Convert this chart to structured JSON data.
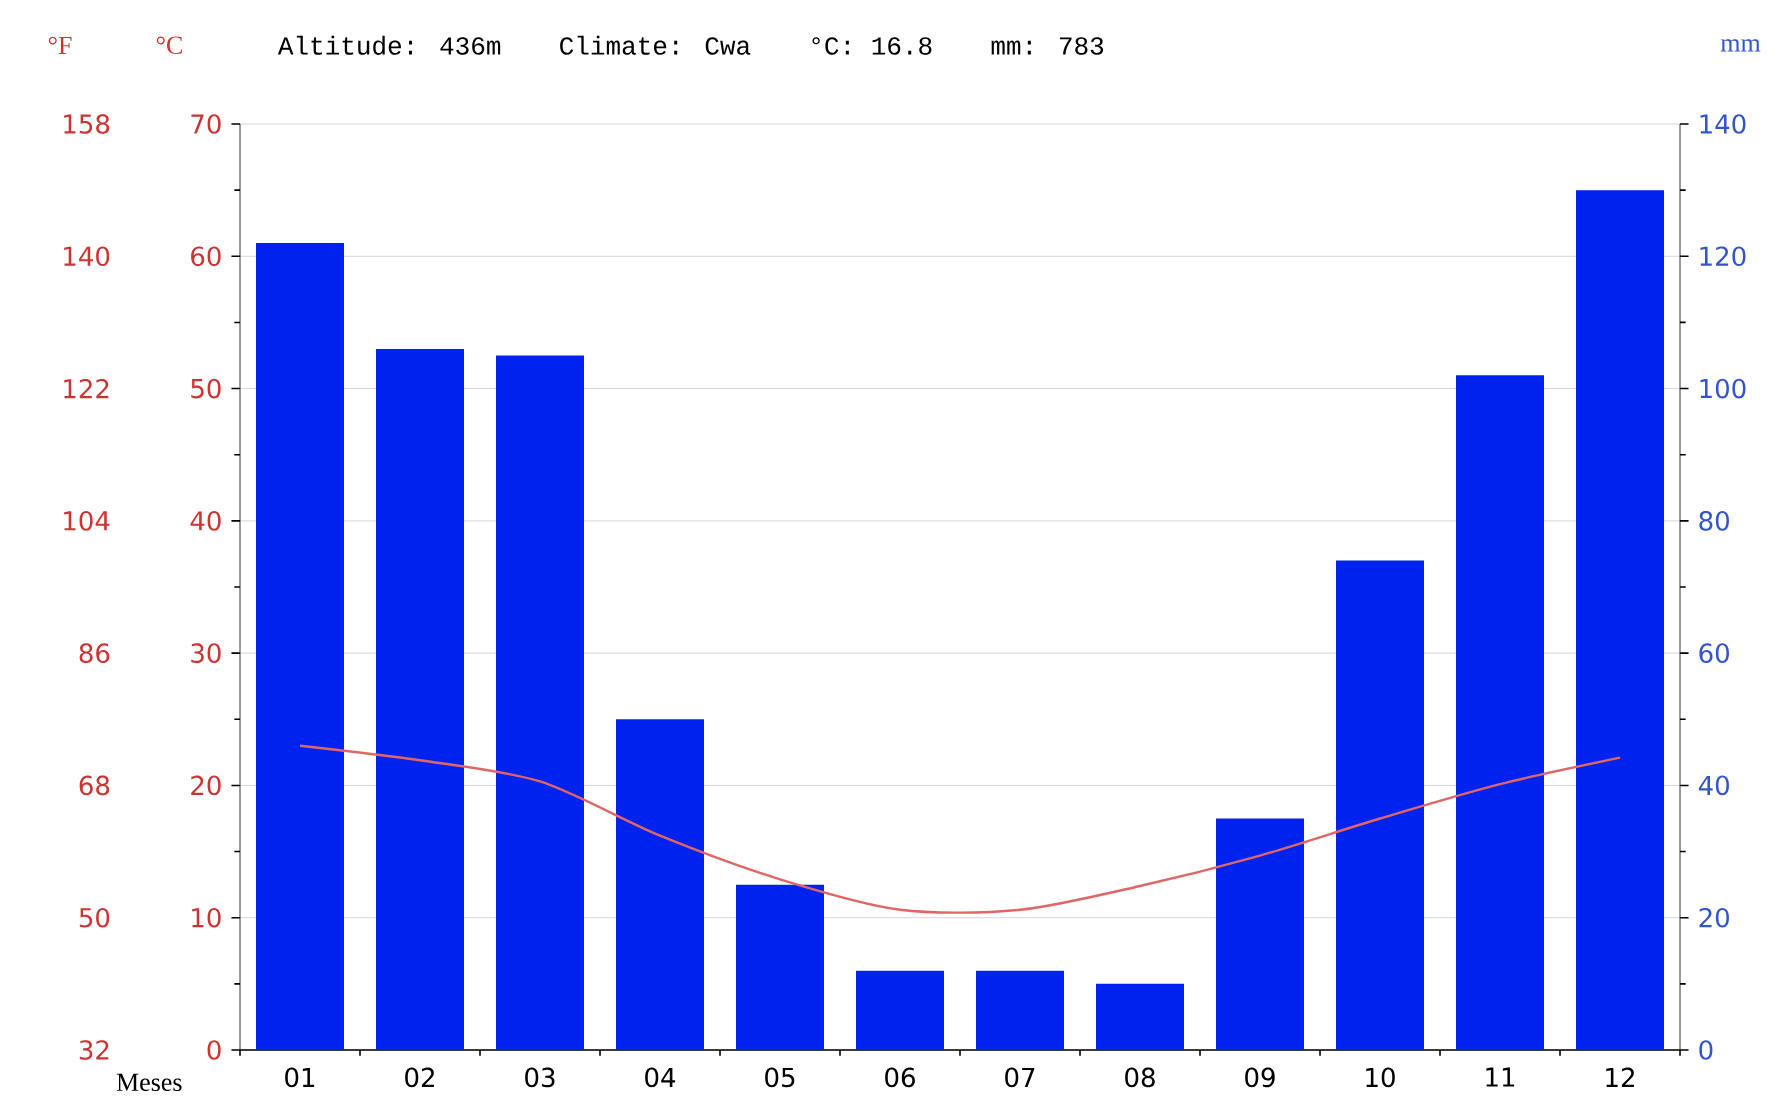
{
  "chart_data": {
    "type": "bar",
    "categories": [
      "01",
      "02",
      "03",
      "04",
      "05",
      "06",
      "07",
      "08",
      "09",
      "10",
      "11",
      "12"
    ],
    "xlabel": "Meses",
    "ylabel": "°C",
    "y2label": "mm",
    "y3label": "°F",
    "ylim": [
      0,
      70
    ],
    "yticks": [
      0,
      10,
      20,
      30,
      40,
      50,
      60,
      70
    ],
    "y2lim": [
      0,
      140
    ],
    "y2ticks": [
      0,
      20,
      40,
      60,
      80,
      100,
      120,
      140
    ],
    "y3lim": [
      32,
      158
    ],
    "y3ticks": [
      32,
      50,
      68,
      86,
      104,
      122,
      140,
      158
    ],
    "grid": "y",
    "annotations": [
      "Altitude: 436m",
      "Climate: Cwa",
      "°C: 16.8",
      "mm: 783"
    ],
    "series": [
      {
        "axis": "y2",
        "color": "#0022ee",
        "values": [
          122,
          106,
          105,
          50,
          25,
          12,
          12,
          10,
          35,
          74,
          102,
          130
        ]
      },
      {
        "type": "line",
        "axis": "y",
        "color": "#e06666",
        "values": [
          23,
          21.9,
          20.3,
          16.2,
          12.9,
          10.6,
          10.6,
          12.4,
          14.7,
          17.5,
          20.1,
          22.1
        ]
      }
    ]
  }
}
